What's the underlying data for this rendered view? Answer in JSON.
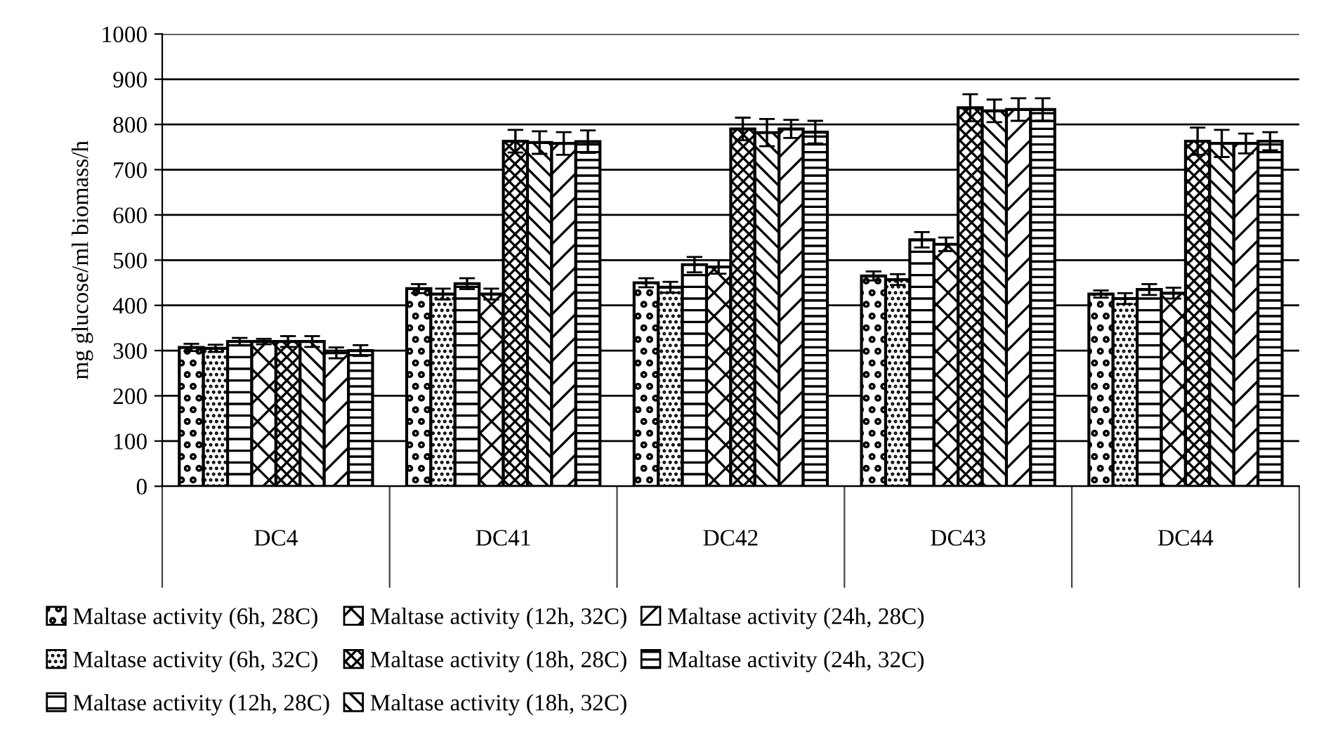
{
  "chart_data": {
    "type": "bar",
    "ylabel": "mg glucose/ml biomass/h",
    "categories": [
      "DC4",
      "DC41",
      "DC42",
      "DC43",
      "DC44"
    ],
    "series": [
      {
        "name": "Maltase activity (6h, 28C)",
        "color": "#000000",
        "values": [
          307,
          437,
          450,
          465,
          425
        ],
        "errors": [
          8,
          10,
          10,
          10,
          8
        ]
      },
      {
        "name": "Maltase activity (6h, 32C)",
        "color": "#000000",
        "values": [
          305,
          425,
          440,
          457,
          415
        ],
        "errors": [
          8,
          12,
          12,
          12,
          12
        ]
      },
      {
        "name": "Maltase activity (12h, 28C)",
        "color": "#000000",
        "values": [
          320,
          448,
          490,
          545,
          435
        ],
        "errors": [
          8,
          12,
          17,
          17,
          12
        ]
      },
      {
        "name": "Maltase activity (12h, 32C)",
        "color": "#000000",
        "values": [
          320,
          425,
          485,
          535,
          427
        ],
        "errors": [
          6,
          12,
          15,
          15,
          12
        ]
      },
      {
        "name": "Maltase activity (18h, 28C)",
        "color": "#000000",
        "values": [
          320,
          763,
          790,
          837,
          763
        ],
        "errors": [
          12,
          25,
          25,
          30,
          30
        ]
      },
      {
        "name": "Maltase activity (18h, 32C)",
        "color": "#000000",
        "values": [
          320,
          760,
          782,
          830,
          758
        ],
        "errors": [
          12,
          25,
          30,
          25,
          30
        ]
      },
      {
        "name": "Maltase activity (24h, 28C)",
        "color": "#000000",
        "values": [
          295,
          758,
          790,
          833,
          758
        ],
        "errors": [
          12,
          25,
          20,
          25,
          22
        ]
      },
      {
        "name": "Maltase activity (24h, 32C)",
        "color": "#000000",
        "values": [
          300,
          762,
          783,
          833,
          763
        ],
        "errors": [
          12,
          25,
          25,
          25,
          20
        ]
      }
    ],
    "ylim": [
      0,
      1000
    ],
    "yticks": [
      0,
      100,
      200,
      300,
      400,
      500,
      600,
      700,
      800,
      900,
      1000
    ],
    "grid": "y",
    "legend": "bottom"
  }
}
